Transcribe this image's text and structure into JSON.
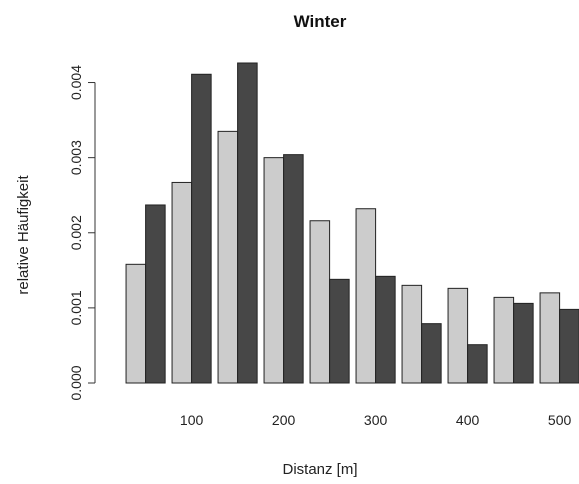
{
  "chart_data": {
    "type": "bar",
    "title": "Winter",
    "xlabel": "Distanz [m]",
    "ylabel": "relative Häufigkeit",
    "ylim": [
      0,
      0.0043
    ],
    "yticks": [
      0.0,
      0.001,
      0.002,
      0.003,
      0.004
    ],
    "ytick_labels": [
      "0.000",
      "0.001",
      "0.002",
      "0.003",
      "0.004"
    ],
    "xticks": [
      100,
      200,
      300,
      400,
      500
    ],
    "xtick_labels": [
      "100",
      "200",
      "300",
      "400",
      "500"
    ],
    "xlim": [
      20,
      520
    ],
    "bin_width": 50,
    "bin_starts": [
      25,
      75,
      125,
      175,
      225,
      275,
      325,
      375,
      425,
      475
    ],
    "series": [
      {
        "color": "#cccccc",
        "values": [
          0.00158,
          0.00267,
          0.00335,
          0.003,
          0.00216,
          0.00232,
          0.0013,
          0.00126,
          0.00114,
          0.0012
        ]
      },
      {
        "color": "#474747",
        "values": [
          0.00237,
          0.00411,
          0.00426,
          0.00304,
          0.00138,
          0.00142,
          0.00079,
          0.00051,
          0.00106,
          0.00098
        ]
      }
    ],
    "grid": false,
    "legend": "none"
  }
}
